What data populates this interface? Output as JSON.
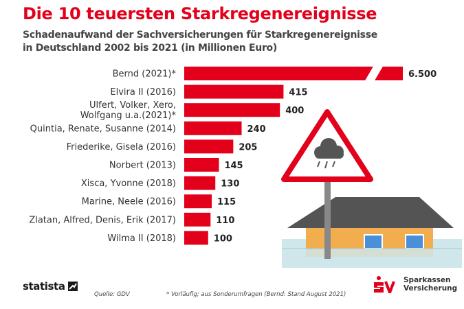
{
  "title": "Die 10 teuersten Starkregenereignisse",
  "subtitle_line1": "Schadenaufwand der Sachversicherungen für Starkregenereignisse",
  "subtitle_line2": "in Deutschland 2002 bis 2021 (in Millionen Euro)",
  "chart_data": {
    "type": "bar",
    "orientation": "horizontal",
    "categories": [
      [
        "Bernd (2021)*"
      ],
      [
        "Elvira II (2016)"
      ],
      [
        "Ulfert, Volker, Xero,",
        "Wolfgang u.a.(2021)*"
      ],
      [
        "Quintia, Renate, Susanne (2014)"
      ],
      [
        "Friederike, Gisela (2016)"
      ],
      [
        "Norbert (2013)"
      ],
      [
        "Xisca, Yvonne (2018)"
      ],
      [
        "Marine, Neele (2016)"
      ],
      [
        "Zlatan, Alfred, Denis, Erik (2017)"
      ],
      [
        "Wilma II (2018)"
      ]
    ],
    "values": [
      6500,
      415,
      400,
      240,
      205,
      145,
      130,
      115,
      110,
      100
    ],
    "value_labels": [
      "6.500",
      "415",
      "400",
      "240",
      "205",
      "145",
      "130",
      "115",
      "110",
      "100"
    ],
    "axis_break_on_first_bar": true,
    "bar_color": "#e3001b"
  },
  "footer": {
    "statista_label": "statista",
    "source": "Quelle: GDV",
    "note": "* Vorläufig; aus Sonderumfragen (Bernd: Stand August 2021)",
    "brand_line1": "Sparkassen",
    "brand_line2": "Versicherung"
  },
  "colors": {
    "accent": "#e3001b",
    "roof": "#545454",
    "house": "#f2ad4e",
    "window": "#4a90d9",
    "water": "#cfe6ea",
    "sign_pole": "#888888"
  },
  "icons": [
    "warning-sign-icon",
    "rain-cloud-icon",
    "house-icon",
    "statista-logo-icon",
    "sparkassen-s-logo-icon"
  ]
}
